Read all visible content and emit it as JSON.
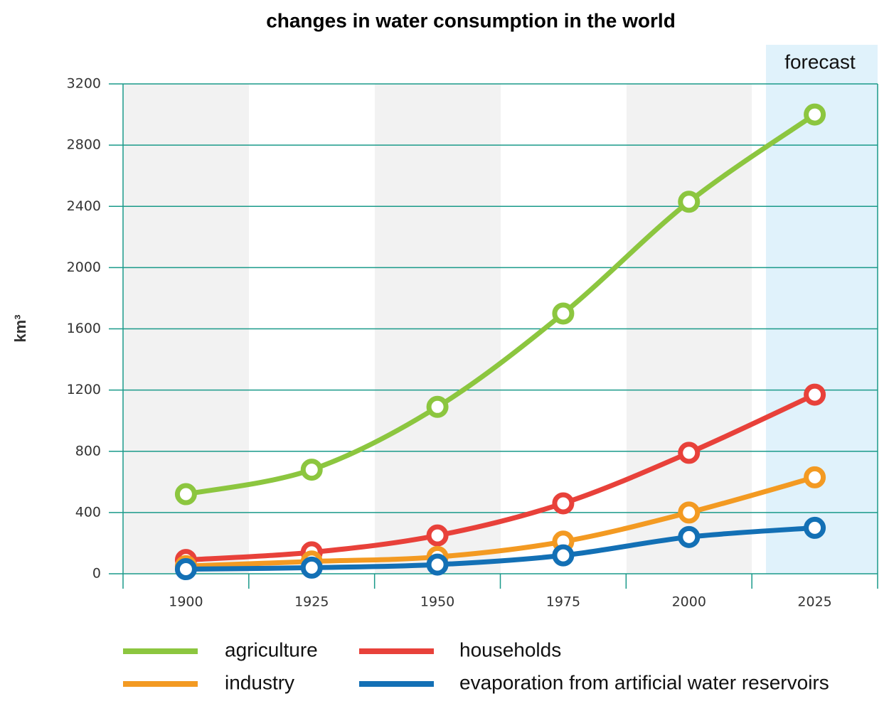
{
  "chart_data": {
    "type": "line",
    "title": "changes in water consumption in the world",
    "ylabel": "km³",
    "annotation": "forecast",
    "categories": [
      "1900",
      "1925",
      "1950",
      "1975",
      "2000",
      "2025"
    ],
    "series": [
      {
        "name": "agriculture",
        "color": "#8cc63f",
        "values": [
          520,
          680,
          1090,
          1700,
          2430,
          3000
        ]
      },
      {
        "name": "households",
        "color": "#e8413a",
        "values": [
          90,
          140,
          250,
          460,
          790,
          1170
        ]
      },
      {
        "name": "industry",
        "color": "#f39a22",
        "values": [
          50,
          80,
          110,
          210,
          400,
          630
        ]
      },
      {
        "name": "evaporation from artificial water reservoirs",
        "color": "#1370b5",
        "values": [
          30,
          40,
          60,
          120,
          240,
          300
        ]
      }
    ],
    "ylim": [
      0,
      3200
    ],
    "yticks": [
      0,
      400,
      800,
      1200,
      1600,
      2000,
      2400,
      2800,
      3200
    ],
    "grid": true
  }
}
